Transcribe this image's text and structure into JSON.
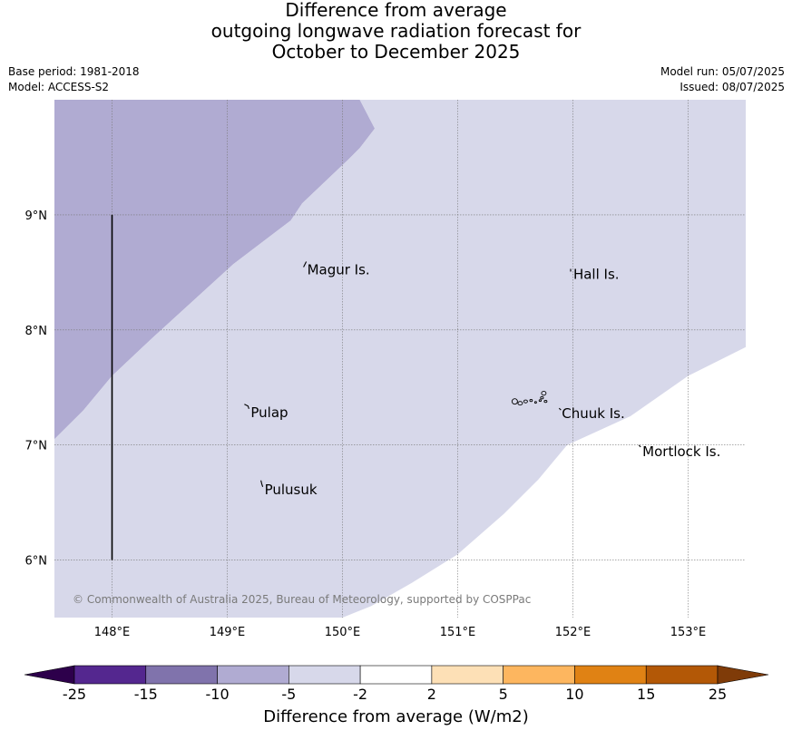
{
  "title": {
    "line1": "Difference from average",
    "line2": "outgoing longwave radiation forecast for",
    "line3": "October to December 2025"
  },
  "info": {
    "base_period": "Base period: 1981-2018",
    "model": "Model: ACCESS-S2",
    "model_run": "Model run: 05/07/2025",
    "issued": "Issued: 08/07/2025"
  },
  "map": {
    "extent": {
      "lon": [
        147.5,
        153.5
      ],
      "lat": [
        5.5,
        10.0
      ]
    },
    "lon_ticks": [
      {
        "value": 148,
        "label": "148°E"
      },
      {
        "value": 149,
        "label": "149°E"
      },
      {
        "value": 150,
        "label": "150°E"
      },
      {
        "value": 151,
        "label": "151°E"
      },
      {
        "value": 152,
        "label": "152°E"
      },
      {
        "value": 153,
        "label": "153°E"
      }
    ],
    "lat_ticks": [
      {
        "value": 9,
        "label": "9°N"
      },
      {
        "value": 8,
        "label": "8°N"
      },
      {
        "value": 7,
        "label": "7°N"
      },
      {
        "value": 6,
        "label": "6°N"
      }
    ],
    "places": [
      {
        "name": "Magur Is.",
        "lon": 149.67,
        "lat": 8.57
      },
      {
        "name": "Hall Is.",
        "lon": 151.98,
        "lat": 8.53
      },
      {
        "name": "Pulap",
        "lon": 149.18,
        "lat": 7.33
      },
      {
        "name": "Chuuk Is.",
        "lon": 151.88,
        "lat": 7.32
      },
      {
        "name": "Mortlock Is.",
        "lon": 152.58,
        "lat": 6.99
      },
      {
        "name": "Pulusuk",
        "lon": 149.3,
        "lat": 6.66
      }
    ],
    "meridian_line": {
      "lon": 148.0,
      "lat_range": [
        6.0,
        9.0
      ]
    },
    "regions": [
      {
        "category": "-10 to -5",
        "color": "#b0abd2",
        "boundary": [
          [
            147.5,
            10.0
          ],
          [
            150.15,
            10.0
          ],
          [
            150.28,
            9.75
          ],
          [
            150.15,
            9.58
          ],
          [
            150.05,
            9.48
          ],
          [
            149.65,
            9.1
          ],
          [
            149.55,
            8.95
          ],
          [
            149.05,
            8.57
          ],
          [
            148.35,
            7.93
          ],
          [
            148.0,
            7.6
          ],
          [
            147.75,
            7.3
          ],
          [
            147.5,
            7.05
          ]
        ]
      },
      {
        "category": "-5 to -2",
        "color": "#d7d8ea",
        "boundary": [
          [
            150.15,
            10.0
          ],
          [
            153.5,
            10.0
          ],
          [
            153.5,
            7.85
          ],
          [
            153.0,
            7.6
          ],
          [
            152.5,
            7.25
          ],
          [
            151.95,
            7.0
          ],
          [
            151.7,
            6.7
          ],
          [
            151.4,
            6.4
          ],
          [
            151.0,
            6.05
          ],
          [
            150.6,
            5.8
          ],
          [
            150.25,
            5.6
          ],
          [
            150.0,
            5.5
          ],
          [
            147.5,
            5.5
          ],
          [
            147.5,
            7.05
          ],
          [
            147.75,
            7.3
          ],
          [
            148.0,
            7.6
          ],
          [
            148.35,
            7.93
          ],
          [
            149.05,
            8.57
          ],
          [
            149.55,
            8.95
          ],
          [
            149.65,
            9.1
          ],
          [
            150.05,
            9.48
          ],
          [
            150.15,
            9.58
          ],
          [
            150.28,
            9.75
          ]
        ]
      }
    ],
    "copyright": "© Commonwealth of Australia 2025, Bureau of Meteorology, supported by COSPPac"
  },
  "colorbar": {
    "title": "Difference from average (W/m2)",
    "segments": [
      {
        "from": "-25",
        "to": "-15",
        "color": "#54278f"
      },
      {
        "from": "-15",
        "to": "-10",
        "color": "#8073ac"
      },
      {
        "from": "-10",
        "to": "-5",
        "color": "#b0abd2"
      },
      {
        "from": "-5",
        "to": "-2",
        "color": "#d7d8ea"
      },
      {
        "from": "-2",
        "to": "2",
        "color": "#ffffff"
      },
      {
        "from": "2",
        "to": "5",
        "color": "#fde0b6"
      },
      {
        "from": "5",
        "to": "10",
        "color": "#fdb65f"
      },
      {
        "from": "10",
        "to": "15",
        "color": "#e08214"
      },
      {
        "from": "15",
        "to": "25",
        "color": "#b35806"
      }
    ],
    "tick_labels": [
      "-25",
      "-15",
      "-10",
      "-5",
      "-2",
      "2",
      "5",
      "10",
      "15",
      "25"
    ],
    "extend_low_color": "#2d004b",
    "extend_high_color": "#7f3b08"
  }
}
